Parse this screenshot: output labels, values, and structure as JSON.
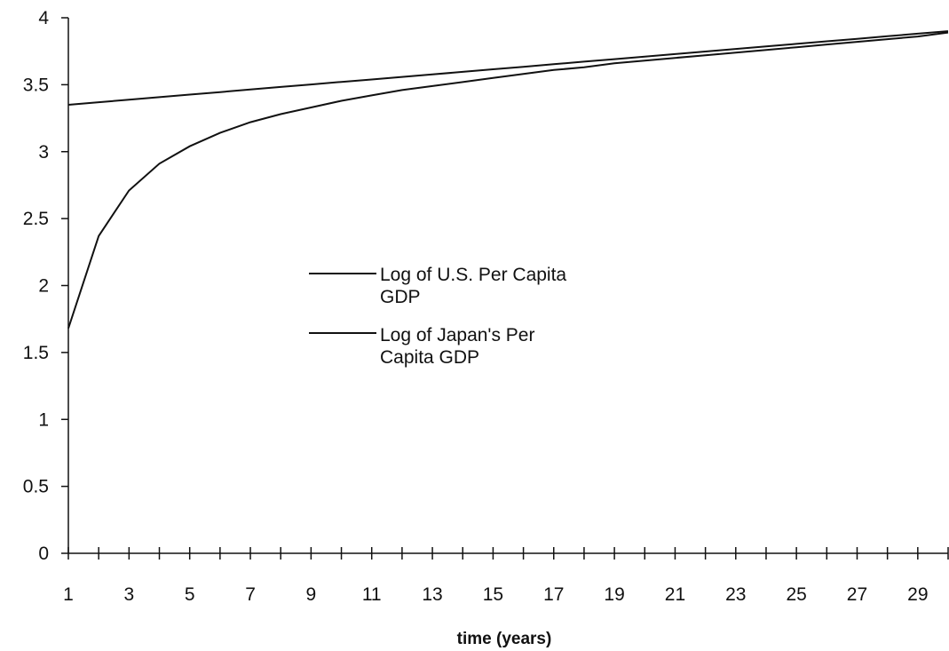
{
  "chart_data": {
    "type": "line",
    "title": "",
    "xlabel": "time (years)",
    "ylabel": "",
    "x": [
      1,
      2,
      3,
      4,
      5,
      6,
      7,
      8,
      9,
      10,
      11,
      12,
      13,
      14,
      15,
      16,
      17,
      18,
      19,
      20,
      21,
      22,
      23,
      24,
      25,
      26,
      27,
      28,
      29,
      30
    ],
    "x_tick_labels": [
      "1",
      "3",
      "5",
      "7",
      "9",
      "11",
      "13",
      "15",
      "17",
      "19",
      "21",
      "23",
      "25",
      "27",
      "29"
    ],
    "y_tick_labels": [
      "0",
      "0.5",
      "1",
      "1.5",
      "2",
      "2.5",
      "3",
      "3.5",
      "4"
    ],
    "xlim": [
      1,
      30
    ],
    "ylim": [
      0,
      4
    ],
    "grid": false,
    "legend_position": "center",
    "series": [
      {
        "name": "Log of U.S. Per Capita GDP",
        "legend_lines": [
          "Log of U.S. Per Capita",
          "GDP"
        ],
        "color": "#111111",
        "values": [
          3.35,
          3.369,
          3.388,
          3.407,
          3.426,
          3.445,
          3.464,
          3.483,
          3.502,
          3.521,
          3.539,
          3.558,
          3.577,
          3.596,
          3.615,
          3.634,
          3.653,
          3.672,
          3.691,
          3.71,
          3.729,
          3.748,
          3.767,
          3.786,
          3.805,
          3.824,
          3.843,
          3.862,
          3.881,
          3.9
        ]
      },
      {
        "name": "Log of Japan's Per Capita GDP",
        "legend_lines": [
          "Log of Japan's Per",
          "Capita GDP"
        ],
        "color": "#111111",
        "values": [
          1.68,
          2.37,
          2.71,
          2.91,
          3.04,
          3.14,
          3.22,
          3.28,
          3.33,
          3.38,
          3.42,
          3.46,
          3.49,
          3.52,
          3.55,
          3.58,
          3.61,
          3.63,
          3.66,
          3.68,
          3.7,
          3.72,
          3.74,
          3.76,
          3.78,
          3.8,
          3.82,
          3.84,
          3.86,
          3.89
        ]
      }
    ]
  }
}
